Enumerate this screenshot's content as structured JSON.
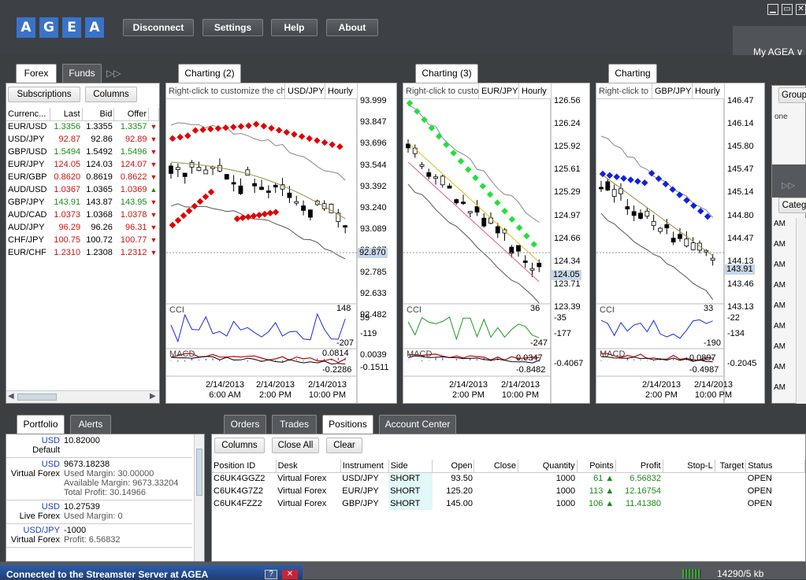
{
  "app": {
    "logo": [
      "A",
      "G",
      "E",
      "A"
    ],
    "my_agea": "My AGEA ∨"
  },
  "toolbar": {
    "disconnect": "Disconnect",
    "settings": "Settings",
    "help": "Help",
    "about": "About"
  },
  "window_controls": {
    "minimize": "▁",
    "maximize": "▭",
    "close": "✕"
  },
  "left_tabs": [
    "Forex",
    "Funds"
  ],
  "forex": {
    "subscriptions": "Subscriptions",
    "columns": "Columns",
    "headers": [
      "Currenc...",
      "Last",
      "Bid",
      "Offer"
    ],
    "rows": [
      {
        "pair": "EUR/USD",
        "last": "1.3356",
        "bid": "1.3355",
        "offer": "1.3357",
        "dir": "▼",
        "c": "up"
      },
      {
        "pair": "USD/JPY",
        "last": "92.87",
        "bid": "92.86",
        "offer": "92.89",
        "dir": "▼",
        "c": "dn"
      },
      {
        "pair": "GBP/USD",
        "last": "1.5494",
        "bid": "1.5492",
        "offer": "1.5496",
        "dir": "▼",
        "c": "up"
      },
      {
        "pair": "EUR/JPY",
        "last": "124.05",
        "bid": "124.03",
        "offer": "124.07",
        "dir": "▼",
        "c": "dn"
      },
      {
        "pair": "EUR/GBP",
        "last": "0.8620",
        "bid": "0.8619",
        "offer": "0.8622",
        "dir": "▼",
        "c": "dn"
      },
      {
        "pair": "AUD/USD",
        "last": "1.0367",
        "bid": "1.0365",
        "offer": "1.0369",
        "dir": "▲",
        "c": "dn"
      },
      {
        "pair": "GBP/JPY",
        "last": "143.91",
        "bid": "143.87",
        "offer": "143.95",
        "dir": "▼",
        "c": "up"
      },
      {
        "pair": "AUD/CAD",
        "last": "1.0373",
        "bid": "1.0368",
        "offer": "1.0378",
        "dir": "▼",
        "c": "dn"
      },
      {
        "pair": "AUD/JPY",
        "last": "96.29",
        "bid": "96.26",
        "offer": "96.31",
        "dir": "▼",
        "c": "dn"
      },
      {
        "pair": "CHF/JPY",
        "last": "100.75",
        "bid": "100.72",
        "offer": "100.77",
        "dir": "▼",
        "c": "dn"
      },
      {
        "pair": "EUR/CHF",
        "last": "1.2310",
        "bid": "1.2308",
        "offer": "1.2312",
        "dir": "▼",
        "c": "dn"
      }
    ]
  },
  "charts": [
    {
      "tab": "Charting (2)",
      "hint": "Right-click to customize the ch",
      "instrument": "USD/JPY",
      "period": "Hourly",
      "yticks": [
        "93.999",
        "93.847",
        "93.696",
        "93.544",
        "93.392",
        "93.240",
        "93.089",
        "92.937",
        "92.785",
        "92.633",
        "92.482"
      ],
      "current": "92.870",
      "cci_label": "CCI",
      "cci_vals": [
        "148",
        "59",
        "-119",
        "-207"
      ],
      "macd_label": "MACD",
      "macd_vals": [
        "0.0814",
        "0.0039",
        "-0.1511",
        "-0.2286"
      ],
      "xticks": [
        [
          "2/14/2013",
          "6:00 AM"
        ],
        [
          "2/14/2013",
          "2:00 PM"
        ],
        [
          "2/14/2013",
          "10:00 PM"
        ]
      ],
      "dots_color": "#e00000"
    },
    {
      "tab": "Charting (3)",
      "hint": "Right-click to custo",
      "instrument": "EUR/JPY",
      "period": "Hourly",
      "yticks": [
        "126.56",
        "126.24",
        "125.92",
        "125.61",
        "125.29",
        "124.97",
        "124.66",
        "124.34",
        "123.71",
        "123.39"
      ],
      "current": "124.05",
      "cci_label": "CCI",
      "cci_vals": [
        "36",
        "-35",
        "-177",
        "-247"
      ],
      "macd_label": "MACD",
      "macd_vals": [
        "0.0347",
        "-0.4067",
        "-0.8482"
      ],
      "xticks": [
        [
          "2/14/2013",
          "2:00 PM"
        ],
        [
          "2/14/2013",
          "10:00 PM"
        ]
      ],
      "dots_color": "#22e03a"
    },
    {
      "tab": "Charting",
      "hint": "Right-click to",
      "instrument": "GBP/JPY",
      "period": "Hourly",
      "yticks": [
        "146.47",
        "146.14",
        "145.80",
        "145.47",
        "145.14",
        "144.80",
        "144.47",
        "144.13",
        "143.46",
        "143.13"
      ],
      "current": "143.91",
      "cci_label": "CCI",
      "cci_vals": [
        "33",
        "-22",
        "-134",
        "-190"
      ],
      "macd_label": "MACD",
      "macd_vals": [
        "0.0897",
        "-0.2045",
        "-0.4987"
      ],
      "xticks": [
        [
          "2/14/2013",
          "2:00 PM"
        ],
        [
          "2/14/2013",
          "10:00 PM"
        ]
      ],
      "dots_color": "#1020e0"
    }
  ],
  "right_partial": {
    "group": "Group",
    "one": "one",
    "categ": "Categ",
    "am": "AM"
  },
  "bottom_left_tabs": [
    "Portfolio",
    "Alerts"
  ],
  "portfolio": [
    {
      "cur": "USD",
      "val": "10.82000",
      "name": "Default",
      "details": []
    },
    {
      "cur": "USD",
      "val": "9673.18238",
      "name": "Virtual Forex",
      "details": [
        "Used Margin:  30.00000",
        "Available Margin:  9673.33204",
        "Total Profit:  30.14966"
      ]
    },
    {
      "cur": "USD",
      "val": "10.27539",
      "name": "Live Forex",
      "details": [
        "Used Margin:  0"
      ]
    },
    {
      "cur": "USD/JPY",
      "val": "-1000",
      "name": "Virtual Forex",
      "details": [
        "Profit:  6.56832"
      ]
    }
  ],
  "bottom_tabs": [
    "Orders",
    "Trades",
    "Positions",
    "Account Center"
  ],
  "positions": {
    "btn_columns": "Columns",
    "btn_close_all": "Close All",
    "btn_clear": "Clear",
    "headers": [
      "Position ID",
      "Desk",
      "Instrument",
      "Side",
      "Open",
      "Close",
      "Quantity",
      "Points",
      "Profit",
      "Stop-L",
      "Target",
      "Status"
    ],
    "rows": [
      [
        "C6UK4GGZ2",
        "Virtual Forex",
        "USD/JPY",
        "SHORT",
        "93.50",
        "",
        "1000",
        "61 ▲",
        "6.56832",
        "",
        "",
        "OPEN"
      ],
      [
        "C6UK4G7Z2",
        "Virtual Forex",
        "EUR/JPY",
        "SHORT",
        "125.20",
        "",
        "1000",
        "113 ▲",
        "12.16754",
        "",
        "",
        "OPEN"
      ],
      [
        "C6UK4FZZ2",
        "Virtual Forex",
        "GBP/JPY",
        "SHORT",
        "145.00",
        "",
        "1000",
        "106 ▲",
        "11.41380",
        "",
        "",
        "OPEN"
      ]
    ]
  },
  "status": {
    "message": "Connected to the Streamster Server at AGEA",
    "help": "?",
    "close": "✕",
    "traffic": "14290/5 kb"
  }
}
